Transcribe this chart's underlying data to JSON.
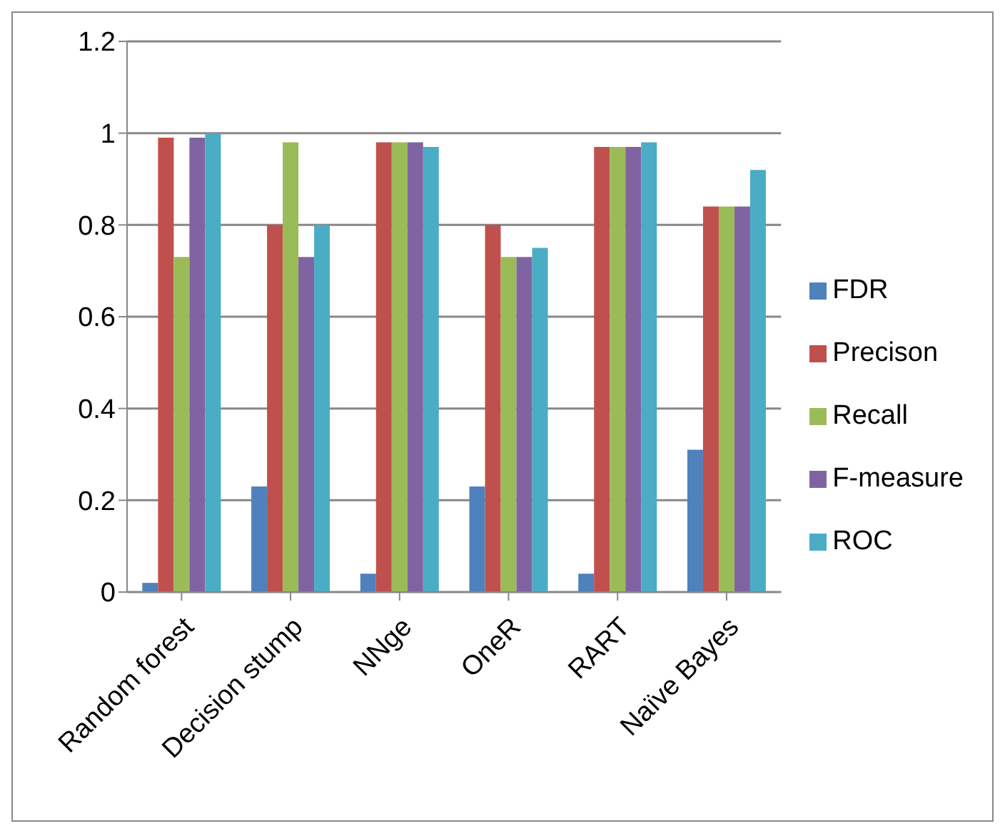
{
  "chart_data": {
    "type": "bar",
    "categories": [
      "Random forest",
      "Decision stump",
      "NNge",
      "OneR",
      "RART",
      "Naïve Bayes"
    ],
    "series": [
      {
        "name": "FDR",
        "color": "#4f81bd",
        "values": [
          0.02,
          0.23,
          0.04,
          0.23,
          0.04,
          0.31
        ]
      },
      {
        "name": "Precison",
        "color": "#c0504d",
        "values": [
          0.99,
          0.8,
          0.98,
          0.8,
          0.97,
          0.84
        ]
      },
      {
        "name": "Recall",
        "color": "#9bbb59",
        "values": [
          0.73,
          0.98,
          0.98,
          0.73,
          0.97,
          0.84
        ]
      },
      {
        "name": "F-measure",
        "color": "#8064a2",
        "values": [
          0.99,
          0.73,
          0.98,
          0.73,
          0.97,
          0.84
        ]
      },
      {
        "name": "ROC",
        "color": "#4bacc6",
        "values": [
          1.0,
          0.8,
          0.97,
          0.75,
          0.98,
          0.92
        ]
      }
    ],
    "ylim": [
      0,
      1.2
    ],
    "yticks": [
      0,
      0.2,
      0.4,
      0.6,
      0.8,
      1,
      1.2
    ],
    "grid": "y",
    "legend": "right"
  }
}
